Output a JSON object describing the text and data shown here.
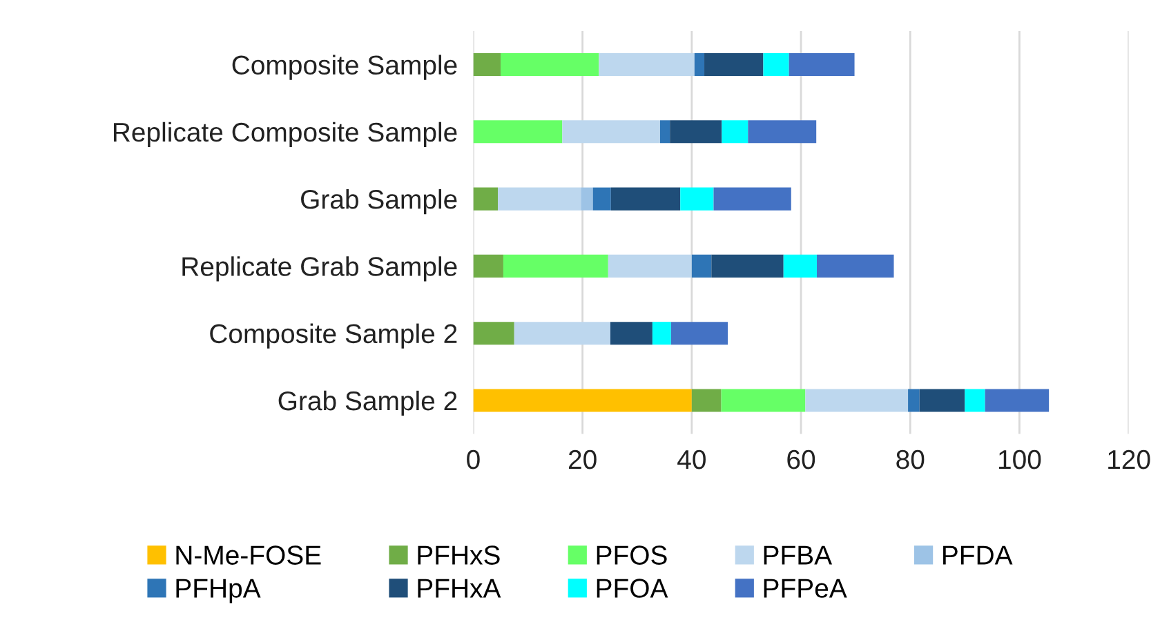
{
  "chart_data": {
    "type": "bar",
    "orientation": "horizontal",
    "stacked": true,
    "categories": [
      "Composite Sample",
      "Replicate Composite Sample",
      "Grab Sample",
      "Replicate Grab Sample",
      "Composite Sample 2",
      "Grab Sample 2"
    ],
    "series": [
      {
        "name": "N-Me-FOSE",
        "color": "#ffc000",
        "values": [
          null,
          null,
          null,
          null,
          null,
          40
        ]
      },
      {
        "name": "PFHxS",
        "color": "#70ad47",
        "values": [
          5,
          null,
          4.5,
          5.5,
          7.5,
          5.4
        ]
      },
      {
        "name": "PFOS",
        "color": "#66ff66",
        "values": [
          18,
          16.3,
          null,
          19.2,
          null,
          15.4
        ]
      },
      {
        "name": "PFBA",
        "color": "#bdd7ee",
        "values": [
          17.5,
          17.9,
          15.2,
          15.3,
          17.6,
          18.8
        ]
      },
      {
        "name": "PFDA",
        "color": "#9dc3e6",
        "values": [
          null,
          null,
          2.2,
          null,
          null,
          null
        ]
      },
      {
        "name": "PFHpA",
        "color": "#2e75b6",
        "values": [
          1.8,
          1.8,
          3.3,
          3.6,
          null,
          2.1
        ]
      },
      {
        "name": "PFHxA",
        "color": "#1f4e79",
        "values": [
          10.8,
          9.5,
          12.7,
          13.2,
          7.7,
          8.3
        ]
      },
      {
        "name": "PFOA",
        "color": "#00ffff",
        "values": [
          4.7,
          4.8,
          6.1,
          6.1,
          3.4,
          3.7
        ]
      },
      {
        "name": "PFPeA",
        "color": "#4472c4",
        "values": [
          12,
          12.5,
          14.2,
          14.1,
          10.4,
          11.7
        ]
      }
    ],
    "xlim": [
      0,
      120
    ],
    "xticks": [
      0,
      20,
      40,
      60,
      80,
      100,
      120
    ],
    "grid": "x",
    "legend": "bottom"
  }
}
